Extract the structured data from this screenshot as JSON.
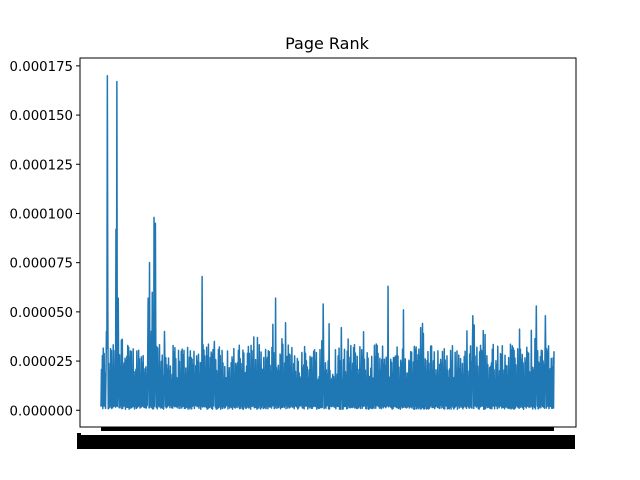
{
  "chart_data": {
    "type": "line",
    "title": "Page Rank",
    "xlabel": "",
    "ylabel": "",
    "ylim": [
      -8.5e-06,
      0.000179
    ],
    "yticks": [
      {
        "value": 0.0,
        "label": "0.000000"
      },
      {
        "value": 2.5e-05,
        "label": "0.000025"
      },
      {
        "value": 5e-05,
        "label": "0.000050"
      },
      {
        "value": 7.5e-05,
        "label": "0.000075"
      },
      {
        "value": 0.0001,
        "label": "0.000100"
      },
      {
        "value": 0.000125,
        "label": "0.000125"
      },
      {
        "value": 0.00015,
        "label": "0.000150"
      },
      {
        "value": 0.000175,
        "label": "0.000175"
      }
    ],
    "x_tick_labels": "overlapping (unreadable)",
    "grid": false,
    "color": "#1f77b4",
    "series": [
      {
        "x_count": 1000,
        "baseline": 5e-07,
        "typical_peak": 2.5e-05,
        "peaks": [
          {
            "x": 14,
            "y": 0.00017
          },
          {
            "x": 15,
            "y": 5.5e-05
          },
          {
            "x": 12,
            "y": 4e-05
          },
          {
            "x": 35,
            "y": 0.000167
          },
          {
            "x": 33,
            "y": 9.2e-05
          },
          {
            "x": 38,
            "y": 5.7e-05
          },
          {
            "x": 107,
            "y": 7.5e-05
          },
          {
            "x": 117,
            "y": 9.8e-05
          },
          {
            "x": 120,
            "y": 9.5e-05
          },
          {
            "x": 113,
            "y": 6e-05
          },
          {
            "x": 104,
            "y": 5.7e-05
          },
          {
            "x": 140,
            "y": 4e-05
          },
          {
            "x": 223,
            "y": 6.8e-05
          },
          {
            "x": 250,
            "y": 3.5e-05
          },
          {
            "x": 385,
            "y": 5.7e-05
          },
          {
            "x": 490,
            "y": 5.4e-05
          },
          {
            "x": 530,
            "y": 4.2e-05
          },
          {
            "x": 633,
            "y": 6.3e-05
          },
          {
            "x": 667,
            "y": 5.1e-05
          },
          {
            "x": 705,
            "y": 4.2e-05
          },
          {
            "x": 820,
            "y": 4.8e-05
          },
          {
            "x": 960,
            "y": 5.3e-05
          },
          {
            "x": 980,
            "y": 4.8e-05
          }
        ]
      }
    ]
  }
}
